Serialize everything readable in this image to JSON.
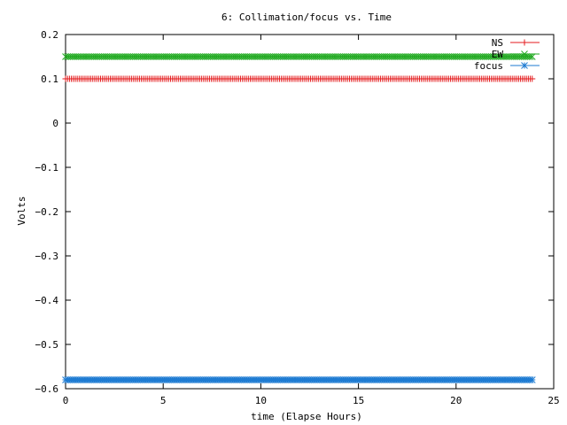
{
  "chart_data": {
    "type": "line",
    "title": "6: Collimation/focus vs. Time",
    "xlabel": "time (Elapse Hours)",
    "ylabel": "Volts",
    "xlim": [
      0,
      25
    ],
    "ylim": [
      -0.6,
      0.2
    ],
    "x_ticks": [
      "0",
      "5",
      "10",
      "15",
      "20",
      "25"
    ],
    "y_ticks": [
      "0.2",
      "0.1",
      "0",
      "−0.1",
      "−0.2",
      "−0.3",
      "−0.4",
      "−0.5",
      "−0.6"
    ],
    "x_tick_values": [
      0,
      5,
      10,
      15,
      20,
      25
    ],
    "y_tick_values": [
      0.2,
      0.1,
      0,
      -0.1,
      -0.2,
      -0.3,
      -0.4,
      -0.5,
      -0.6
    ],
    "grid": false,
    "legend_position": "top-right",
    "series": [
      {
        "name": "NS",
        "color": "#e41a1c",
        "marker": "plus",
        "x_start": 0,
        "x_end": 23.9,
        "value": 0.1
      },
      {
        "name": "EW",
        "color": "#22aa22",
        "marker": "x",
        "x_start": 0,
        "x_end": 23.9,
        "value": 0.15
      },
      {
        "name": "focus",
        "color": "#1e7bd2",
        "marker": "star",
        "x_start": 0,
        "x_end": 23.9,
        "value": -0.58
      }
    ]
  }
}
